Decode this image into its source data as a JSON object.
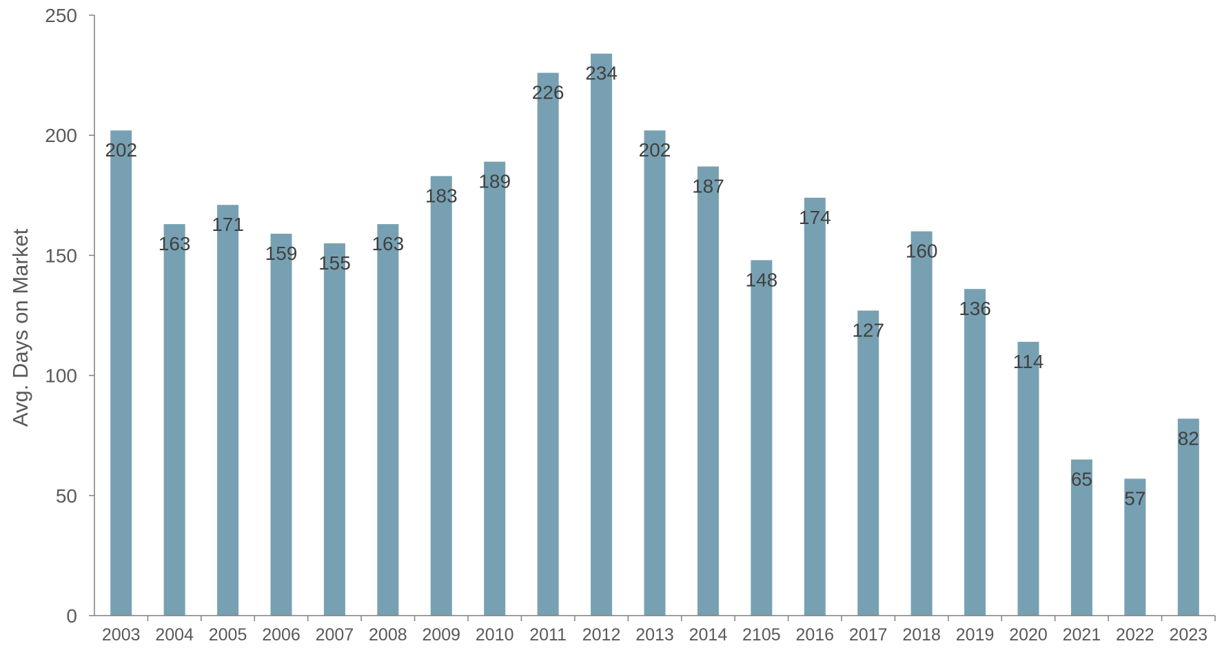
{
  "chart_data": {
    "type": "bar",
    "title": "",
    "xlabel": "",
    "ylabel": "Avg. Days on Market",
    "categories": [
      "2003",
      "2004",
      "2005",
      "2006",
      "2007",
      "2008",
      "2009",
      "2010",
      "2011",
      "2012",
      "2013",
      "2014",
      "2105",
      "2016",
      "2017",
      "2018",
      "2019",
      "2020",
      "2021",
      "2022",
      "2023"
    ],
    "values": [
      202,
      163,
      171,
      159,
      155,
      163,
      183,
      189,
      226,
      234,
      202,
      187,
      148,
      174,
      127,
      160,
      136,
      114,
      65,
      57,
      82
    ],
    "ylim": [
      0,
      250
    ],
    "yticks": [
      0,
      50,
      100,
      150,
      200,
      250
    ],
    "grid": false,
    "legend": "none",
    "colors": {
      "bar": "#77A1B2",
      "axis": "#7F7F7F",
      "tick_text": "#595959",
      "data_label_text": "#404040"
    }
  }
}
